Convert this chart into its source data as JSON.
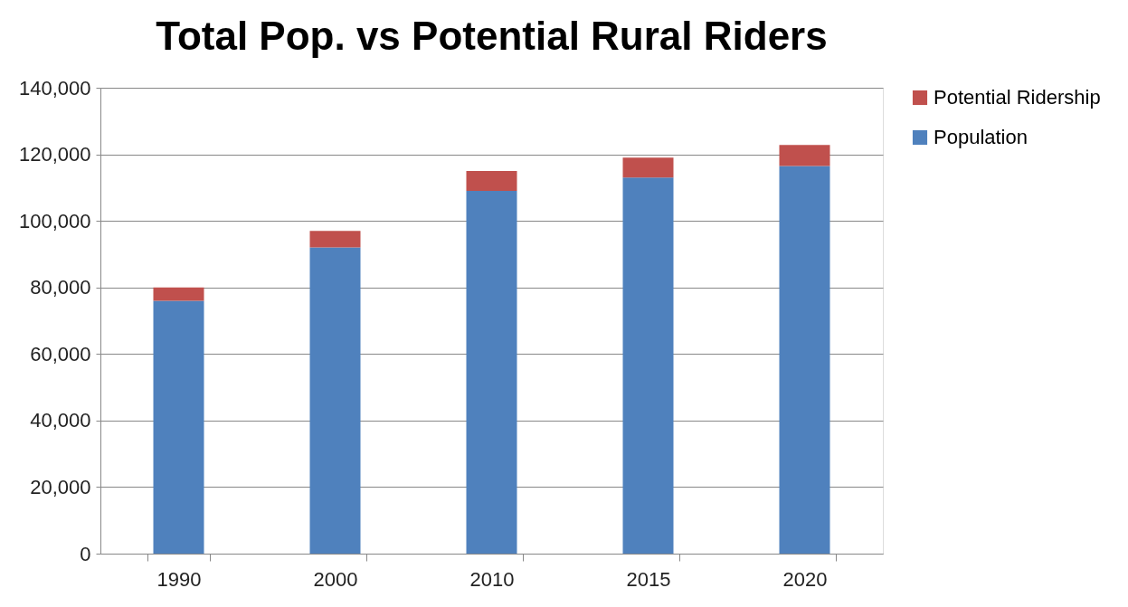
{
  "chart_data": {
    "type": "bar",
    "title": "Total Pop. vs Potential Rural Riders",
    "categories": [
      "1990",
      "2000",
      "2010",
      "2015",
      "2020"
    ],
    "stacked": true,
    "series": [
      {
        "name": "Population",
        "color": "#4f81bd",
        "values": [
          76000,
          92000,
          109000,
          113000,
          116500
        ]
      },
      {
        "name": "Potential Ridership",
        "color": "#c0504d",
        "values": [
          4000,
          5000,
          6000,
          6000,
          6300
        ]
      }
    ],
    "ylim": [
      0,
      140000
    ],
    "yticks": [
      0,
      {
        "value": 20000,
        "label": "20,000"
      },
      {
        "value": 40000,
        "label": "40,000"
      },
      {
        "value": 60000,
        "label": "60,000"
      },
      {
        "value": 80000,
        "label": "80,000"
      },
      {
        "value": 100000,
        "label": "100,000"
      },
      {
        "value": 120000,
        "label": "120,000"
      },
      {
        "value": 140000,
        "label": "140,000"
      }
    ],
    "grid": "y",
    "legend": "right"
  }
}
